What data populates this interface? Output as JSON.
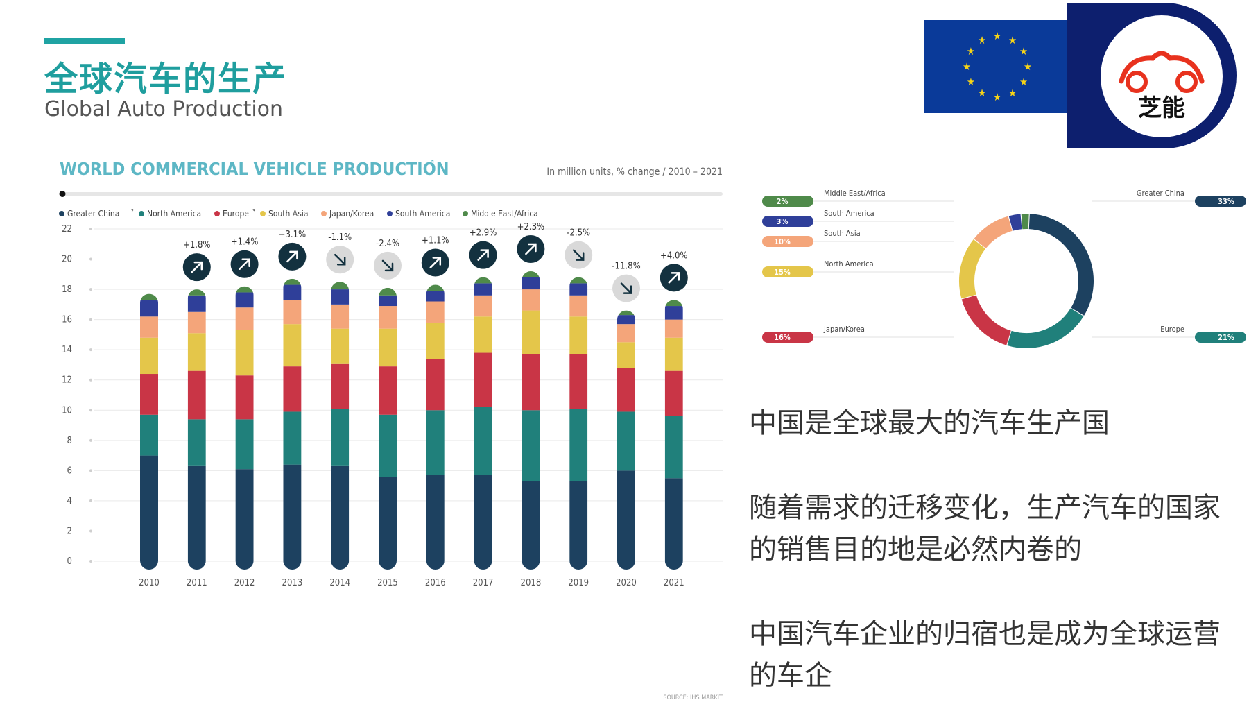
{
  "header": {
    "title_cn": "全球汽车的生产",
    "title_en": "Global Auto Production",
    "logo_text": "芝能"
  },
  "chart_data": [
    {
      "type": "bar",
      "stacked": true,
      "title": "WORLD COMMERCIAL VEHICLE PRODUCTION",
      "title_superscript": "1",
      "subtitle": "In million units, % change / 2010 – 2021",
      "source": "SOURCE: IHS MARKIT",
      "categories": [
        "2010",
        "2011",
        "2012",
        "2013",
        "2014",
        "2015",
        "2016",
        "2017",
        "2018",
        "2019",
        "2020",
        "2021"
      ],
      "y_ticks": [
        0,
        2,
        4,
        6,
        8,
        10,
        12,
        14,
        16,
        18,
        20,
        22
      ],
      "ylim": [
        0,
        22
      ],
      "legend_position": "top",
      "series": [
        {
          "name": "Greater China",
          "name_superscript": "2",
          "color": "#1d4160",
          "values": [
            7.0,
            6.3,
            6.1,
            6.4,
            6.3,
            5.6,
            5.7,
            5.7,
            5.3,
            5.3,
            6.0,
            5.5
          ]
        },
        {
          "name": "North America",
          "color": "#20807b",
          "values": [
            2.7,
            3.1,
            3.3,
            3.5,
            3.8,
            4.1,
            4.3,
            4.5,
            4.7,
            4.8,
            3.9,
            4.1
          ]
        },
        {
          "name": "Europe",
          "name_superscript": "3",
          "color": "#c93546",
          "values": [
            2.7,
            3.2,
            2.9,
            3.0,
            3.0,
            3.2,
            3.4,
            3.6,
            3.7,
            3.6,
            2.9,
            3.0
          ]
        },
        {
          "name": "South Asia",
          "color": "#e4c64a",
          "values": [
            2.4,
            2.5,
            3.0,
            2.8,
            2.3,
            2.5,
            2.4,
            2.4,
            2.9,
            2.5,
            1.7,
            2.2
          ]
        },
        {
          "name": "Japan/Korea",
          "color": "#f4a57a",
          "values": [
            1.4,
            1.4,
            1.5,
            1.6,
            1.6,
            1.5,
            1.4,
            1.4,
            1.4,
            1.4,
            1.2,
            1.2
          ]
        },
        {
          "name": "South America",
          "color": "#2f3f99",
          "values": [
            1.1,
            1.1,
            1.0,
            1.0,
            1.0,
            0.7,
            0.7,
            0.8,
            0.8,
            0.8,
            0.6,
            0.9
          ]
        },
        {
          "name": "Middle East/Africa",
          "color": "#4f8a4a",
          "values": [
            0.4,
            0.4,
            0.4,
            0.4,
            0.5,
            0.5,
            0.4,
            0.4,
            0.4,
            0.4,
            0.3,
            0.4
          ]
        }
      ],
      "annotations": [
        {
          "category": "2011",
          "label": "+1.8%",
          "direction": "up"
        },
        {
          "category": "2012",
          "label": "+1.4%",
          "direction": "up"
        },
        {
          "category": "2013",
          "label": "+3.1%",
          "direction": "up"
        },
        {
          "category": "2014",
          "label": "-1.1%",
          "direction": "down"
        },
        {
          "category": "2015",
          "label": "-2.4%",
          "direction": "down"
        },
        {
          "category": "2016",
          "label": "+1.1%",
          "direction": "up"
        },
        {
          "category": "2017",
          "label": "+2.9%",
          "direction": "up"
        },
        {
          "category": "2018",
          "label": "+2.3%",
          "direction": "up"
        },
        {
          "category": "2019",
          "label": "-2.5%",
          "direction": "down"
        },
        {
          "category": "2020",
          "label": "-11.8%",
          "direction": "down"
        },
        {
          "category": "2021",
          "label": "+4.0%",
          "direction": "up"
        }
      ]
    },
    {
      "type": "pie",
      "donut": true,
      "slices": [
        {
          "name": "Greater China",
          "value": 33,
          "label": "33%",
          "color": "#1d4160",
          "side": "right"
        },
        {
          "name": "Europe",
          "value": 21,
          "label": "21%",
          "color": "#20807b",
          "side": "right"
        },
        {
          "name": "Japan/Korea",
          "value": 16,
          "label": "16%",
          "color": "#c93546",
          "side": "left"
        },
        {
          "name": "North America",
          "value": 15,
          "label": "15%",
          "color": "#e4c64a",
          "side": "left"
        },
        {
          "name": "South Asia",
          "value": 10,
          "label": "10%",
          "color": "#f4a57a",
          "side": "left"
        },
        {
          "name": "South America",
          "value": 3,
          "label": "3%",
          "color": "#2f3f99",
          "side": "left"
        },
        {
          "name": "Middle East/Africa",
          "value": 2,
          "label": "2%",
          "color": "#4f8a4a",
          "side": "left"
        }
      ]
    }
  ],
  "right_panel": {
    "line1": "中国是全球最大的汽车生产国",
    "line2a": "随着需求的迁移变化，生产汽车的国家",
    "line2b": "的销售目的地是必然内卷的",
    "line3a": "中国汽车企业的归宿也是成为全球运营",
    "line3b": "的车企"
  },
  "colors": {
    "accent": "#1fa3a3",
    "arrow_up_bg": "#13313f",
    "arrow_down_bg": "#d9d9d9",
    "flag_blue": "#0a3a99",
    "star_yellow": "#f7d417",
    "logo_red": "#e8321e",
    "logo_navy": "#0d1f6e"
  }
}
